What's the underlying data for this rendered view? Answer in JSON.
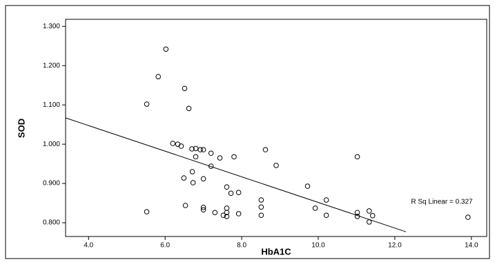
{
  "chart_data": {
    "type": "scatter",
    "x_label": "HbA1C",
    "y_label": "SOD",
    "annotation": "R Sq Linear = 0.327",
    "xlim": [
      3.4,
      14.4
    ],
    "ylim": [
      0.765,
      1.318
    ],
    "xticks": [
      {
        "value": 4,
        "label": "4.0"
      },
      {
        "value": 6,
        "label": "6.0"
      },
      {
        "value": 8,
        "label": "8.0"
      },
      {
        "value": 10,
        "label": "10.0"
      },
      {
        "value": 12,
        "label": "12.0"
      },
      {
        "value": 14,
        "label": "14.0"
      }
    ],
    "yticks": [
      {
        "value": 0.8,
        "label": "0.800"
      },
      {
        "value": 0.9,
        "label": "0.900"
      },
      {
        "value": 1.0,
        "label": "1.000"
      },
      {
        "value": 1.1,
        "label": "1.100"
      },
      {
        "value": 1.2,
        "label": "1.200"
      },
      {
        "value": 1.3,
        "label": "1.300"
      }
    ],
    "color": "#000000",
    "x": [
      6.02,
      5.82,
      6.51,
      5.52,
      6.62,
      6.2,
      6.33,
      6.42,
      6.7,
      6.8,
      6.92,
      7.0,
      7.2,
      7.43,
      6.8,
      7.8,
      8.62,
      7.2,
      8.9,
      11.02,
      6.71,
      6.49,
      7.0,
      6.73,
      7.61,
      9.72,
      7.72,
      7.92,
      8.51,
      10.21,
      6.53,
      7.0,
      7.0,
      7.61,
      8.51,
      9.92,
      5.52,
      7.3,
      7.61,
      7.92,
      7.52,
      7.61,
      8.51,
      10.21,
      11.02,
      11.02,
      11.33,
      11.42,
      11.33,
      13.91
    ],
    "y": [
      1.242,
      1.172,
      1.142,
      1.102,
      1.091,
      1.002,
      1.0,
      0.995,
      0.988,
      0.989,
      0.986,
      0.986,
      0.977,
      0.965,
      0.968,
      0.968,
      0.986,
      0.944,
      0.946,
      0.968,
      0.93,
      0.914,
      0.912,
      0.902,
      0.891,
      0.893,
      0.875,
      0.877,
      0.858,
      0.858,
      0.844,
      0.839,
      0.833,
      0.837,
      0.84,
      0.837,
      0.828,
      0.826,
      0.826,
      0.823,
      0.819,
      0.816,
      0.819,
      0.819,
      0.826,
      0.816,
      0.83,
      0.818,
      0.802,
      0.814
    ],
    "fit_line": {
      "x": [
        3.4,
        12.29
      ],
      "y": [
        1.067,
        0.777
      ]
    }
  }
}
